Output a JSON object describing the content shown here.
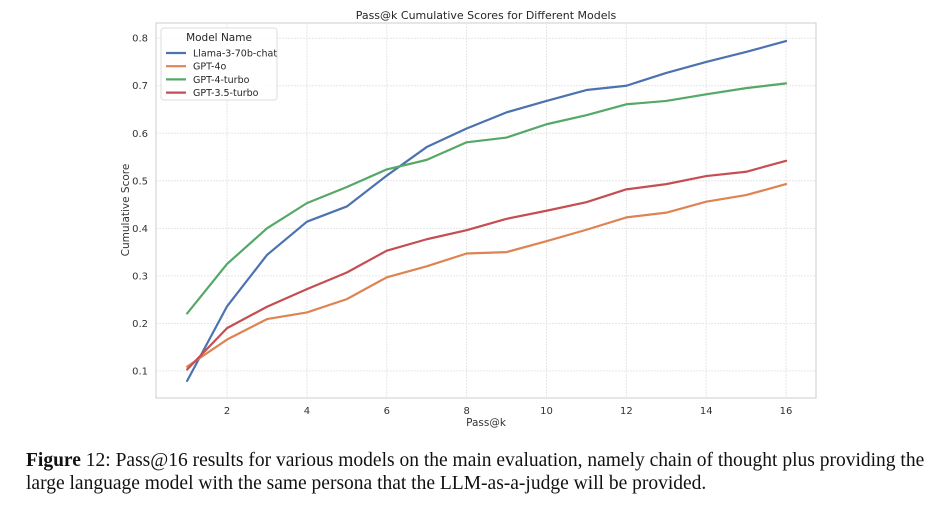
{
  "chart_data": {
    "type": "line",
    "title": "Pass@k Cumulative Scores for Different Models",
    "xlabel": "Pass@k",
    "ylabel": "Cumulative Score",
    "xlim": [
      0.22,
      16.75
    ],
    "ylim": [
      0.043,
      0.832
    ],
    "xticks": [
      2,
      4,
      6,
      8,
      10,
      12,
      14,
      16
    ],
    "yticks": [
      0.1,
      0.2,
      0.3,
      0.4,
      0.5,
      0.6,
      0.7,
      0.8
    ],
    "xtick_labels": [
      "2",
      "4",
      "6",
      "8",
      "10",
      "12",
      "14",
      "16"
    ],
    "ytick_labels": [
      "0.1",
      "0.2",
      "0.3",
      "0.4",
      "0.5",
      "0.6",
      "0.7",
      "0.8"
    ],
    "grid": true,
    "legend": {
      "title": "Model Name",
      "placement": "top-left"
    },
    "x": [
      1,
      2,
      3,
      4,
      5,
      6,
      7,
      8,
      9,
      10,
      11,
      12,
      13,
      14,
      15,
      16
    ],
    "series": [
      {
        "name": "Llama-3-70b-chat",
        "color": "#4c72b0",
        "values": [
          0.079,
          0.236,
          0.344,
          0.414,
          0.446,
          0.511,
          0.571,
          0.61,
          0.644,
          0.668,
          0.691,
          0.7,
          0.727,
          0.75,
          0.771,
          0.794
        ]
      },
      {
        "name": "GPT-4o",
        "color": "#dd8452",
        "values": [
          0.109,
          0.166,
          0.209,
          0.223,
          0.251,
          0.297,
          0.32,
          0.347,
          0.35,
          0.373,
          0.397,
          0.423,
          0.433,
          0.456,
          0.47,
          0.493
        ]
      },
      {
        "name": "GPT-4-turbo",
        "color": "#55a868",
        "values": [
          0.221,
          0.325,
          0.4,
          0.453,
          0.487,
          0.524,
          0.544,
          0.581,
          0.591,
          0.619,
          0.638,
          0.661,
          0.668,
          0.682,
          0.695,
          0.705
        ]
      },
      {
        "name": "GPT-3.5-turbo",
        "color": "#c44e52",
        "values": [
          0.103,
          0.19,
          0.235,
          0.272,
          0.307,
          0.353,
          0.377,
          0.396,
          0.42,
          0.437,
          0.455,
          0.482,
          0.493,
          0.51,
          0.519,
          0.542
        ]
      }
    ]
  },
  "caption": {
    "label": "Figure",
    "number": "12:",
    "text": "Pass@16 results for various models on the main evaluation, namely chain of thought plus providing the large language model with the same persona that the LLM-as-a-judge will be provided."
  }
}
